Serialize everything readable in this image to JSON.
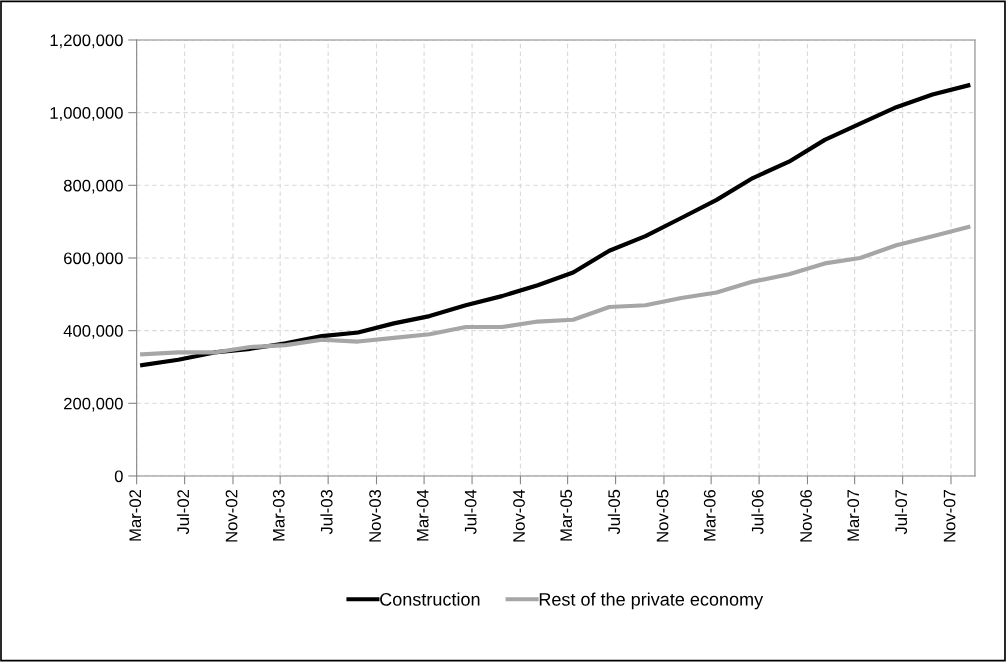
{
  "chart_data": {
    "type": "line",
    "x": [
      "2002-03-15",
      "2002-06-15",
      "2002-09-15",
      "2002-12-15",
      "2003-03-15",
      "2003-06-15",
      "2003-09-15",
      "2003-12-15",
      "2004-03-15",
      "2004-06-15",
      "2004-09-15",
      "2004-12-15",
      "2005-03-15",
      "2005-06-15",
      "2005-09-15",
      "2005-12-15",
      "2006-03-15",
      "2006-06-15",
      "2006-09-15",
      "2006-12-15",
      "2007-03-15",
      "2007-06-15",
      "2007-09-15",
      "2007-12-15"
    ],
    "series": [
      {
        "name": "Construction",
        "color": "#000000",
        "values": [
          305000,
          320000,
          340000,
          350000,
          365000,
          385000,
          395000,
          420000,
          440000,
          470000,
          495000,
          525000,
          560000,
          620000,
          660000,
          710000,
          760000,
          820000,
          865000,
          925000,
          970000,
          1015000,
          1050000,
          1075000
        ]
      },
      {
        "name": "Rest of the private economy",
        "color": "#a6a6a6",
        "values": [
          335000,
          340000,
          340000,
          355000,
          360000,
          375000,
          370000,
          380000,
          390000,
          410000,
          410000,
          425000,
          430000,
          465000,
          470000,
          490000,
          505000,
          535000,
          555000,
          585000,
          600000,
          635000,
          660000,
          685000
        ]
      }
    ],
    "xlim": [
      "2002-03-01",
      "2008-01-01"
    ],
    "xticks": [
      {
        "value": "2002-03-01",
        "label": "Mar-02"
      },
      {
        "value": "2002-07-01",
        "label": "Jul-02"
      },
      {
        "value": "2002-11-01",
        "label": "Nov-02"
      },
      {
        "value": "2003-03-01",
        "label": "Mar-03"
      },
      {
        "value": "2003-07-01",
        "label": "Jul-03"
      },
      {
        "value": "2003-11-01",
        "label": "Nov-03"
      },
      {
        "value": "2004-03-01",
        "label": "Mar-04"
      },
      {
        "value": "2004-07-01",
        "label": "Jul-04"
      },
      {
        "value": "2004-11-01",
        "label": "Nov-04"
      },
      {
        "value": "2005-03-01",
        "label": "Mar-05"
      },
      {
        "value": "2005-07-01",
        "label": "Jul-05"
      },
      {
        "value": "2005-11-01",
        "label": "Nov-05"
      },
      {
        "value": "2006-03-01",
        "label": "Mar-06"
      },
      {
        "value": "2006-07-01",
        "label": "Jul-06"
      },
      {
        "value": "2006-11-01",
        "label": "Nov-06"
      },
      {
        "value": "2007-03-01",
        "label": "Mar-07"
      },
      {
        "value": "2007-07-01",
        "label": "Jul-07"
      },
      {
        "value": "2007-11-01",
        "label": "Nov-07"
      }
    ],
    "ylim": [
      0,
      1200000
    ],
    "yticks": [
      {
        "value": 0,
        "label": "0"
      },
      {
        "value": 200000,
        "label": "200,000"
      },
      {
        "value": 400000,
        "label": "400,000"
      },
      {
        "value": 600000,
        "label": "600,000"
      },
      {
        "value": 800000,
        "label": "800,000"
      },
      {
        "value": 1000000,
        "label": "1,000,000"
      },
      {
        "value": 1200000,
        "label": "1,200,000"
      }
    ],
    "grid": true,
    "legend": "bottom",
    "marker": "none",
    "line_style": "solid"
  }
}
